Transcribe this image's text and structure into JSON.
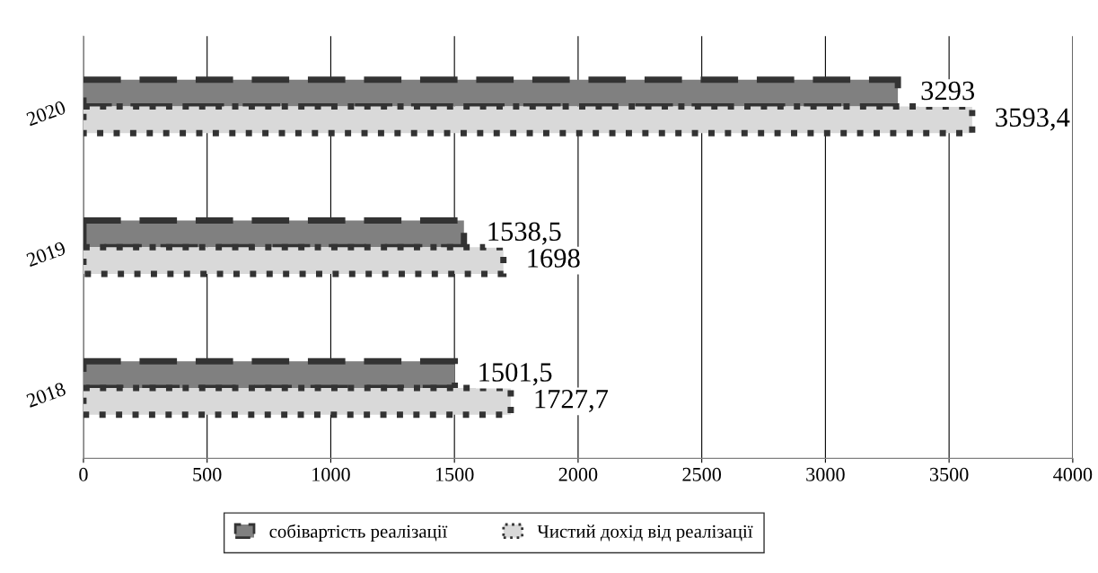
{
  "chart_data": {
    "type": "bar",
    "orientation": "horizontal",
    "categories": [
      "2020",
      "2019",
      "2018"
    ],
    "series": [
      {
        "name": "собівартість реалізації",
        "color": "#808080",
        "line_style": "dashed",
        "values": [
          3293,
          1538.5,
          1501.5
        ],
        "value_labels": [
          "3293",
          "1538,5",
          "1501,5"
        ]
      },
      {
        "name": "Чистий дохід від реалізації",
        "color": "#d9d9d9",
        "line_style": "dotted",
        "values": [
          3593.4,
          1698,
          1727.7
        ],
        "value_labels": [
          "3593,4",
          "1698",
          "1727,7"
        ]
      }
    ],
    "xlim": [
      0,
      4000
    ],
    "xticks": [
      0,
      500,
      1000,
      1500,
      2000,
      2500,
      3000,
      3500,
      4000
    ],
    "grid": "x",
    "legend": "bottom"
  }
}
